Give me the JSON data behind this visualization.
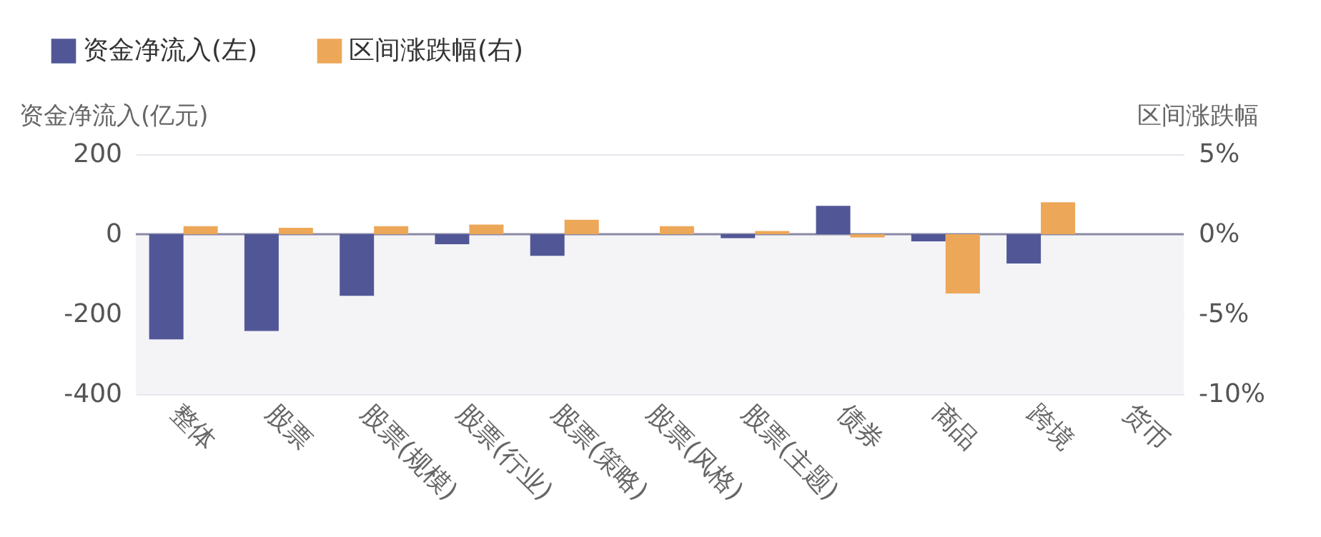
{
  "chart_data": {
    "type": "bar",
    "categories": [
      "整体",
      "股票",
      "股票(规模)",
      "股票(行业)",
      "股票(策略)",
      "股票(风格)",
      "股票(主题)",
      "债券",
      "商品",
      "跨境",
      "货币"
    ],
    "ylabel": "资金净流入(亿元)",
    "y2label": "区间涨跌幅",
    "ylim": [
      -400,
      200
    ],
    "yticks": [
      -400,
      -200,
      0,
      200
    ],
    "y2lim": [
      -10,
      5
    ],
    "y2ticks": [
      {
        "value": -10,
        "label": "-10%"
      },
      {
        "value": -5,
        "label": "-5%"
      },
      {
        "value": 0,
        "label": "0%"
      },
      {
        "value": 5,
        "label": "5%"
      }
    ],
    "series": [
      {
        "name": "资金净流入(左)",
        "color": "#515796",
        "values": [
          -263,
          -242,
          -154,
          -25,
          -54,
          0,
          -10,
          71,
          -18,
          -73,
          0
        ]
      },
      {
        "name": "区间涨跌幅(右)",
        "color": "#eda758",
        "axis": "y2",
        "values": [
          0.5,
          0.4,
          0.5,
          0.6,
          0.9,
          0.5,
          0.2,
          -0.2,
          -3.7,
          2.0,
          0
        ]
      }
    ],
    "bands": [
      {
        "axis": "y",
        "from": -400,
        "to": 0,
        "color": "#f4f4f7"
      }
    ],
    "ref_lines": [
      {
        "axis": "y",
        "value": 0,
        "color": "#8a8aa6"
      }
    ],
    "grid": "y",
    "legend": "top left"
  }
}
